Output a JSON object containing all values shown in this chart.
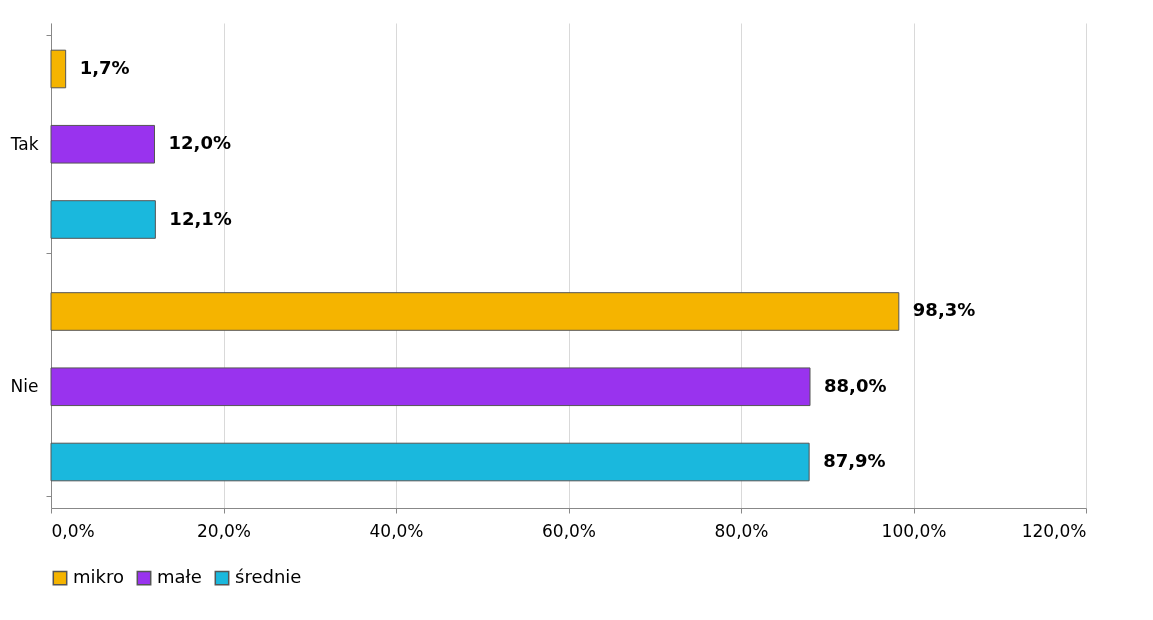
{
  "chart_data": {
    "type": "bar",
    "orientation": "horizontal",
    "categories": [
      "Tak",
      "Nie"
    ],
    "series": [
      {
        "name": "mikro",
        "color": "#f5b400",
        "values": [
          1.7,
          98.3
        ],
        "value_labels": [
          "1,7%",
          "98,3%"
        ]
      },
      {
        "name": "małe",
        "color": "#9933ee",
        "values": [
          12.0,
          88.0
        ],
        "value_labels": [
          "12,0%",
          "88,0%"
        ]
      },
      {
        "name": "średnie",
        "color": "#1ab8dd",
        "values": [
          12.1,
          87.9
        ],
        "value_labels": [
          "12,1%",
          "87,9%"
        ]
      }
    ],
    "xlim": [
      0,
      120
    ],
    "xticks": [
      {
        "value": 0,
        "label": "0,0%"
      },
      {
        "value": 20,
        "label": "20,0%"
      },
      {
        "value": 40,
        "label": "40,0%"
      },
      {
        "value": 60,
        "label": "60,0%"
      },
      {
        "value": 80,
        "label": "80,0%"
      },
      {
        "value": 100,
        "label": "100,0%"
      },
      {
        "value": 120,
        "label": "120,0%"
      }
    ],
    "grid": "x",
    "legend": "bottom"
  }
}
